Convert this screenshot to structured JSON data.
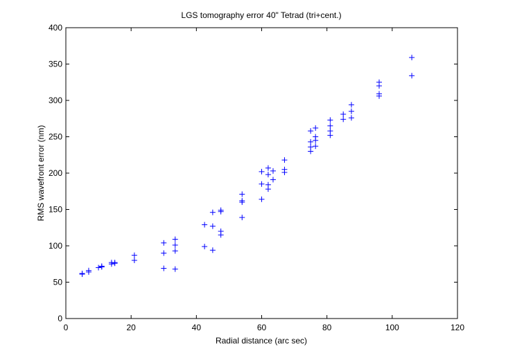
{
  "chart_data": {
    "type": "scatter",
    "title": "LGS tomography error 40\" Tetrad (tri+cent.)",
    "xlabel": "Radial distance (arc sec)",
    "ylabel": "RMS wavefront error (nm)",
    "xlim": [
      0,
      120
    ],
    "ylim": [
      0,
      400
    ],
    "xticks": [
      0,
      20,
      40,
      60,
      80,
      100,
      120
    ],
    "yticks": [
      0,
      50,
      100,
      150,
      200,
      250,
      300,
      350,
      400
    ],
    "grid": false,
    "marker": "+",
    "marker_color": "#0000ff",
    "series": [
      {
        "points": [
          [
            5,
            62
          ],
          [
            5,
            61
          ],
          [
            7,
            66
          ],
          [
            7,
            64
          ],
          [
            10,
            70
          ],
          [
            11,
            72
          ],
          [
            11,
            71
          ],
          [
            14,
            77
          ],
          [
            14,
            75
          ],
          [
            15,
            77
          ],
          [
            15,
            76
          ],
          [
            21,
            87
          ],
          [
            21,
            80
          ],
          [
            30,
            104
          ],
          [
            30,
            90
          ],
          [
            30,
            69
          ],
          [
            33.5,
            109
          ],
          [
            33.5,
            101
          ],
          [
            33.5,
            93
          ],
          [
            33.5,
            68
          ],
          [
            42.5,
            129
          ],
          [
            42.5,
            99
          ],
          [
            45,
            146
          ],
          [
            45,
            127
          ],
          [
            45,
            94
          ],
          [
            47.5,
            149
          ],
          [
            47.5,
            147
          ],
          [
            47.5,
            120
          ],
          [
            47.5,
            115
          ],
          [
            54,
            171
          ],
          [
            54,
            162
          ],
          [
            54,
            160
          ],
          [
            54,
            139
          ],
          [
            60,
            202
          ],
          [
            60,
            185
          ],
          [
            60,
            164
          ],
          [
            62,
            207
          ],
          [
            62,
            198
          ],
          [
            62,
            184
          ],
          [
            62,
            178
          ],
          [
            63.5,
            203
          ],
          [
            63.5,
            191
          ],
          [
            67,
            218
          ],
          [
            67,
            205
          ],
          [
            67,
            201
          ],
          [
            75,
            258
          ],
          [
            75,
            243
          ],
          [
            75,
            236
          ],
          [
            75,
            230
          ],
          [
            76.5,
            262
          ],
          [
            76.5,
            250
          ],
          [
            76.5,
            245
          ],
          [
            76.5,
            237
          ],
          [
            81,
            273
          ],
          [
            81,
            265
          ],
          [
            81,
            258
          ],
          [
            81,
            252
          ],
          [
            85,
            281
          ],
          [
            85,
            274
          ],
          [
            87.5,
            294
          ],
          [
            87.5,
            285
          ],
          [
            87.5,
            276
          ],
          [
            96,
            325
          ],
          [
            96,
            320
          ],
          [
            96,
            309
          ],
          [
            96,
            306
          ],
          [
            106,
            359
          ],
          [
            106,
            334
          ]
        ]
      }
    ]
  }
}
